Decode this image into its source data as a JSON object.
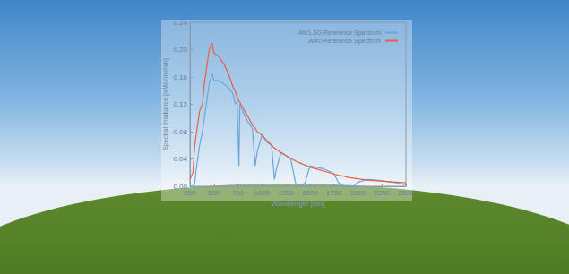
{
  "chart_data": {
    "type": "line",
    "x_label": "Wavelength [nm]",
    "y_label": "Spectral Irradiance [mW/cm²/nm]",
    "x": [
      250,
      280,
      300,
      320,
      350,
      380,
      400,
      420,
      450,
      480,
      500,
      550,
      600,
      650,
      700,
      720,
      740,
      760,
      770,
      800,
      850,
      900,
      930,
      950,
      1000,
      1050,
      1100,
      1130,
      1150,
      1200,
      1250,
      1300,
      1350,
      1400,
      1450,
      1500,
      1550,
      1600,
      1650,
      1700,
      1750,
      1800,
      1850,
      1900,
      1950,
      2000,
      2050,
      2100,
      2200,
      2300,
      2400,
      2500
    ],
    "series": [
      {
        "name": "AM1.5G Reference Spectrum",
        "color": "#6aa6d8",
        "values": [
          0,
          0,
          0.005,
          0.03,
          0.06,
          0.08,
          0.1,
          0.12,
          0.15,
          0.165,
          0.155,
          0.155,
          0.15,
          0.145,
          0.135,
          0.12,
          0.125,
          0.03,
          0.12,
          0.11,
          0.095,
          0.085,
          0.03,
          0.05,
          0.075,
          0.065,
          0.06,
          0.01,
          0.025,
          0.05,
          0.045,
          0.04,
          0.005,
          0.0,
          0.005,
          0.03,
          0.028,
          0.027,
          0.025,
          0.022,
          0.018,
          0.005,
          0.0,
          0.0,
          0.0,
          0.006,
          0.008,
          0.01,
          0.009,
          0.007,
          0.005,
          0.002
        ]
      },
      {
        "name": "AM0 Reference Spectrum",
        "color": "#e8604c",
        "values": [
          0.01,
          0.02,
          0.06,
          0.08,
          0.11,
          0.12,
          0.15,
          0.17,
          0.2,
          0.21,
          0.195,
          0.19,
          0.18,
          0.165,
          0.145,
          0.14,
          0.13,
          0.125,
          0.123,
          0.115,
          0.103,
          0.09,
          0.085,
          0.08,
          0.075,
          0.067,
          0.06,
          0.056,
          0.054,
          0.049,
          0.045,
          0.041,
          0.037,
          0.034,
          0.031,
          0.028,
          0.026,
          0.024,
          0.022,
          0.02,
          0.018,
          0.016,
          0.015,
          0.013,
          0.012,
          0.011,
          0.01,
          0.009,
          0.008,
          0.007,
          0.006,
          0.005
        ]
      }
    ],
    "xlim": [
      250,
      2500
    ],
    "xticks": [
      250,
      500,
      750,
      1000,
      1250,
      1500,
      1750,
      2000,
      2250,
      2500
    ],
    "ylim": [
      0,
      0.24
    ],
    "yticks": [
      {
        "value": 0,
        "label": "0.00"
      },
      0.04,
      0.08,
      0.12,
      0.16,
      {
        "value": 0.2,
        "label": "0.20"
      },
      0.24
    ],
    "grid": false,
    "legend": "upper right",
    "marker": "none",
    "line_style": "solid"
  }
}
